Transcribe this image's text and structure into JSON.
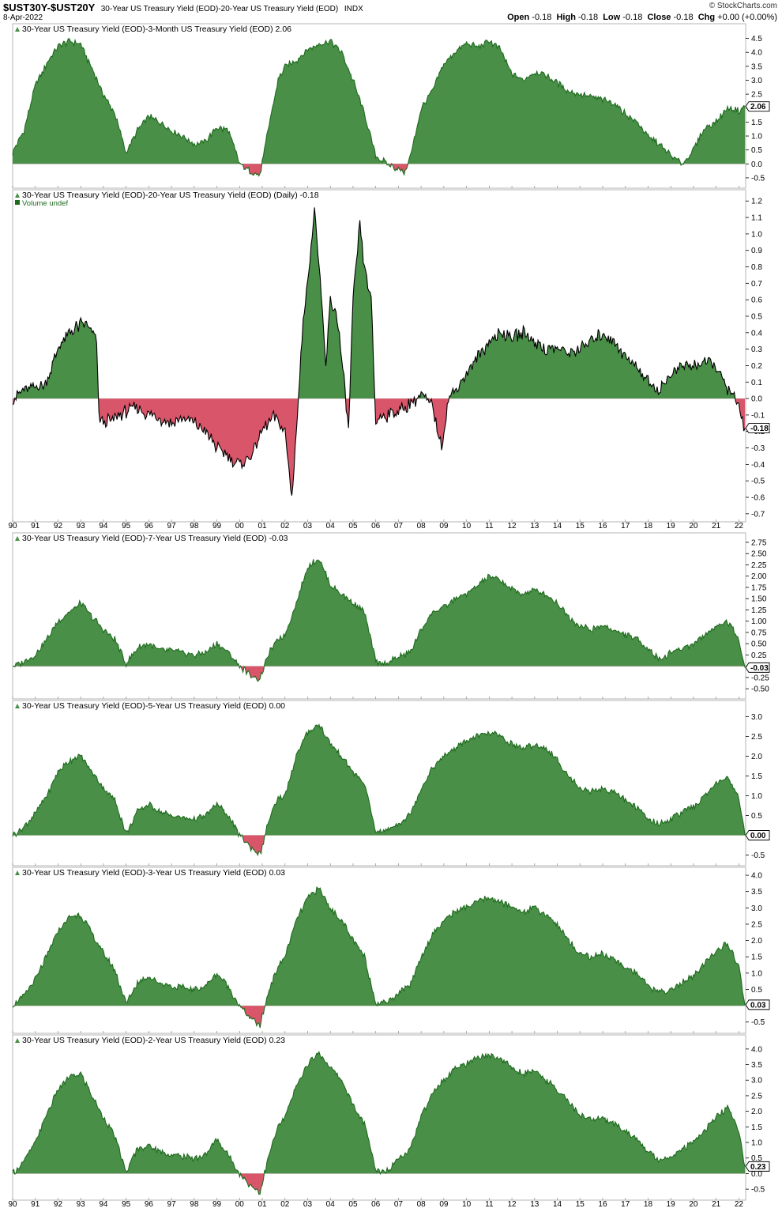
{
  "header": {
    "symbol": "$UST30Y-$UST20Y",
    "description": "30-Year US Treasury Yield (EOD)-20-Year US Treasury Yield (EOD)",
    "exchange": "INDX",
    "date": "8-Apr-2022",
    "brand": "© StockCharts.com",
    "open_label": "Open",
    "open": "-0.18",
    "high_label": "High",
    "high": "-0.18",
    "low_label": "Low",
    "low": "-0.18",
    "close_label": "Close",
    "close": "-0.18",
    "chg_label": "Chg",
    "chg": "+0.00 (+0.00%)"
  },
  "colors": {
    "positive": "#4a8f48",
    "negative": "#d9556a",
    "line_green": "#1e6b1e",
    "line_black": "#000000"
  },
  "year_labels": [
    "90",
    "91",
    "92",
    "93",
    "94",
    "95",
    "96",
    "97",
    "98",
    "99",
    "00",
    "01",
    "02",
    "03",
    "04",
    "05",
    "06",
    "07",
    "08",
    "09",
    "10",
    "11",
    "12",
    "13",
    "14",
    "15",
    "16",
    "17",
    "18",
    "19",
    "20",
    "21",
    "22"
  ],
  "chart_data": [
    {
      "type": "area",
      "title": "30-Year US Treasury Yield (EOD)-3-Month US Treasury Yield (EOD) 2.06",
      "last_label": "2.06",
      "yticks": [
        "-0.5",
        "0.0",
        "0.5",
        "1.0",
        "1.5",
        "2.0",
        "2.5",
        "3.0",
        "3.5",
        "4.0",
        "4.5"
      ],
      "ylim": [
        -0.7,
        4.8
      ],
      "x": [
        1990,
        1990.5,
        1991,
        1991.5,
        1992,
        1992.5,
        1993,
        1993.5,
        1994,
        1994.5,
        1995,
        1995.5,
        1996,
        1996.5,
        1997,
        1997.5,
        1998,
        1998.5,
        1999,
        1999.5,
        2000,
        2000.5,
        2000.9,
        2001.3,
        2001.7,
        2002,
        2002.5,
        2003,
        2003.5,
        2004,
        2004.5,
        2005,
        2005.5,
        2006,
        2006.5,
        2007,
        2007.3,
        2007.6,
        2008,
        2008.5,
        2009,
        2009.5,
        2010,
        2010.5,
        2011,
        2011.5,
        2012,
        2012.5,
        2013,
        2013.5,
        2014,
        2014.5,
        2015,
        2015.5,
        2016,
        2016.5,
        2017,
        2017.5,
        2018,
        2018.5,
        2019,
        2019.5,
        2020,
        2020.5,
        2021,
        2021.5,
        2022,
        2022.27
      ],
      "values": [
        0.4,
        1.2,
        2.8,
        3.6,
        4.2,
        4.4,
        4.3,
        3.4,
        2.5,
        1.8,
        0.4,
        1.2,
        1.7,
        1.5,
        1.2,
        1.0,
        0.7,
        0.8,
        1.3,
        1.2,
        0.0,
        -0.3,
        -0.4,
        1.4,
        3.0,
        3.5,
        3.7,
        4.1,
        4.3,
        4.4,
        4.0,
        3.0,
        1.8,
        0.3,
        0.0,
        -0.2,
        -0.3,
        0.5,
        2.0,
        2.6,
        3.6,
        4.0,
        4.3,
        4.2,
        4.4,
        4.1,
        3.2,
        3.0,
        3.3,
        3.2,
        2.9,
        2.6,
        2.5,
        2.4,
        2.3,
        2.2,
        1.8,
        1.5,
        1.0,
        0.7,
        0.3,
        0.0,
        0.5,
        1.3,
        1.5,
        2.0,
        1.9,
        2.06
      ]
    },
    {
      "type": "area",
      "title": "30-Year US Treasury Yield (EOD)-20-Year US Treasury Yield (EOD) (Daily) -0.18",
      "legend": "Volume undef",
      "last_label": "-0.18",
      "yticks": [
        "-0.7",
        "-0.6",
        "-0.5",
        "-0.4",
        "-0.3",
        "-0.2",
        "-0.1",
        "0.0",
        "0.1",
        "0.2",
        "0.3",
        "0.4",
        "0.5",
        "0.6",
        "0.7",
        "0.8",
        "0.9",
        "1.0",
        "1.1",
        "1.2"
      ],
      "ylim": [
        -0.72,
        1.23
      ],
      "x": [
        1990,
        1990.5,
        1991,
        1991.5,
        1992,
        1992.5,
        1993,
        1993.3,
        1993.7,
        1993.8,
        1994,
        1994.5,
        1995,
        1995.5,
        1996,
        1996.5,
        1997,
        1997.5,
        1998,
        1998.5,
        1999,
        1999.5,
        2000,
        2000.5,
        2001,
        2001.5,
        2002,
        2002.3,
        2002.6,
        2002.8,
        2003,
        2003.3,
        2003.5,
        2003.8,
        2004,
        2004.3,
        2004.6,
        2004.8,
        2005,
        2005.3,
        2005.5,
        2005.8,
        2006,
        2006.1,
        2006.5,
        2007,
        2007.5,
        2008,
        2008.5,
        2008.9,
        2009.2,
        2009.5,
        2010,
        2010.5,
        2011,
        2011.5,
        2012,
        2012.5,
        2013,
        2013.5,
        2014,
        2014.5,
        2015,
        2015.5,
        2016,
        2016.5,
        2017,
        2017.5,
        2018,
        2018.5,
        2019,
        2019.5,
        2020,
        2020.5,
        2021,
        2021.3,
        2021.6,
        2022,
        2022.27
      ],
      "values": [
        0.0,
        0.05,
        0.07,
        0.1,
        0.3,
        0.4,
        0.45,
        0.45,
        0.35,
        -0.1,
        -0.15,
        -0.12,
        -0.08,
        -0.05,
        -0.1,
        -0.12,
        -0.15,
        -0.12,
        -0.15,
        -0.2,
        -0.3,
        -0.35,
        -0.4,
        -0.35,
        -0.2,
        -0.1,
        -0.2,
        -0.6,
        0.0,
        0.5,
        0.7,
        1.15,
        0.8,
        0.2,
        0.6,
        0.5,
        0.1,
        -0.2,
        0.6,
        1.05,
        0.8,
        0.6,
        -0.15,
        -0.12,
        -0.1,
        -0.08,
        -0.03,
        0.02,
        -0.05,
        -0.3,
        0.0,
        0.05,
        0.15,
        0.25,
        0.35,
        0.4,
        0.38,
        0.4,
        0.35,
        0.3,
        0.3,
        0.28,
        0.3,
        0.35,
        0.4,
        0.35,
        0.25,
        0.2,
        0.1,
        0.05,
        0.15,
        0.2,
        0.2,
        0.22,
        0.2,
        0.1,
        0.05,
        -0.05,
        -0.18
      ]
    },
    {
      "type": "area",
      "title": "30-Year US Treasury Yield (EOD)-7-Year US Treasury Yield (EOD) -0.03",
      "last_label": "-0.03",
      "yticks": [
        "-0.50",
        "-0.25",
        "0.00",
        "0.25",
        "0.50",
        "0.75",
        "1.00",
        "1.25",
        "1.50",
        "1.75",
        "2.00",
        "2.25",
        "2.50",
        "2.75"
      ],
      "ylim": [
        -0.62,
        2.82
      ],
      "x": [
        1990,
        1990.5,
        1991,
        1991.5,
        1992,
        1992.5,
        1993,
        1993.5,
        1994,
        1994.5,
        1995,
        1995.5,
        1996,
        1996.5,
        1997,
        1997.5,
        1998,
        1998.5,
        1999,
        1999.5,
        2000,
        2000.5,
        2000.9,
        2001.3,
        2001.7,
        2002,
        2002.5,
        2003,
        2003.5,
        2004,
        2004.5,
        2005,
        2005.5,
        2006,
        2006.3,
        2006.6,
        2007,
        2007.5,
        2008,
        2008.5,
        2009,
        2009.5,
        2010,
        2010.5,
        2011,
        2011.5,
        2012,
        2012.5,
        2013,
        2013.5,
        2014,
        2014.5,
        2015,
        2015.5,
        2016,
        2016.5,
        2017,
        2017.5,
        2018,
        2018.5,
        2019,
        2019.5,
        2020,
        2020.5,
        2021,
        2021.5,
        2022,
        2022.27
      ],
      "values": [
        0.0,
        0.1,
        0.25,
        0.6,
        1.0,
        1.2,
        1.4,
        1.1,
        0.8,
        0.6,
        0.05,
        0.4,
        0.5,
        0.35,
        0.35,
        0.3,
        0.25,
        0.3,
        0.5,
        0.3,
        0.0,
        -0.2,
        -0.3,
        0.3,
        0.6,
        0.7,
        1.4,
        2.2,
        2.4,
        1.8,
        1.6,
        1.4,
        1.2,
        0.1,
        0.05,
        0.1,
        0.2,
        0.3,
        0.8,
        1.2,
        1.3,
        1.5,
        1.6,
        1.8,
        2.0,
        1.9,
        1.7,
        1.6,
        1.7,
        1.6,
        1.4,
        1.1,
        0.9,
        0.8,
        0.9,
        0.8,
        0.7,
        0.6,
        0.4,
        0.15,
        0.3,
        0.4,
        0.5,
        0.7,
        0.9,
        1.0,
        0.6,
        -0.03
      ]
    },
    {
      "type": "area",
      "title": "30-Year US Treasury Yield (EOD)-5-Year US Treasury Yield (EOD) 0.00",
      "last_label": "0.00",
      "yticks": [
        "-0.5",
        "0.0",
        "0.5",
        "1.0",
        "1.5",
        "2.0",
        "2.5",
        "3.0"
      ],
      "ylim": [
        -0.65,
        3.25
      ],
      "x": [
        1990,
        1990.5,
        1991,
        1991.5,
        1992,
        1992.5,
        1993,
        1993.5,
        1994,
        1994.5,
        1995,
        1995.5,
        1996,
        1996.5,
        1997,
        1997.5,
        1998,
        1998.5,
        1999,
        1999.5,
        2000,
        2000.5,
        2000.9,
        2001.3,
        2001.7,
        2002,
        2002.5,
        2003,
        2003.5,
        2004,
        2004.5,
        2005,
        2005.5,
        2006,
        2006.3,
        2006.6,
        2007,
        2007.5,
        2008,
        2008.5,
        2009,
        2009.5,
        2010,
        2010.5,
        2011,
        2011.5,
        2012,
        2012.5,
        2013,
        2013.5,
        2014,
        2014.5,
        2015,
        2015.5,
        2016,
        2016.5,
        2017,
        2017.5,
        2018,
        2018.5,
        2019,
        2019.5,
        2020,
        2020.5,
        2021,
        2021.5,
        2022,
        2022.27
      ],
      "values": [
        0.0,
        0.2,
        0.55,
        1.0,
        1.6,
        1.9,
        2.0,
        1.6,
        1.2,
        0.9,
        0.05,
        0.6,
        0.8,
        0.6,
        0.5,
        0.45,
        0.4,
        0.5,
        0.8,
        0.5,
        0.0,
        -0.3,
        -0.5,
        0.4,
        0.9,
        1.0,
        2.0,
        2.6,
        2.8,
        2.3,
        2.0,
        1.6,
        1.3,
        0.1,
        0.1,
        0.15,
        0.3,
        0.5,
        1.2,
        1.7,
        2.0,
        2.2,
        2.4,
        2.5,
        2.6,
        2.5,
        2.3,
        2.2,
        2.3,
        2.2,
        1.9,
        1.5,
        1.2,
        1.1,
        1.2,
        1.1,
        0.9,
        0.7,
        0.4,
        0.3,
        0.4,
        0.6,
        0.7,
        1.0,
        1.3,
        1.5,
        0.9,
        0.0
      ]
    },
    {
      "type": "area",
      "title": "30-Year US Treasury Yield (EOD)-3-Year US Treasury Yield (EOD) 0.03",
      "last_label": "0.03",
      "yticks": [
        "-0.5",
        "0.0",
        "0.5",
        "1.0",
        "1.5",
        "2.0",
        "2.5",
        "3.0",
        "3.5",
        "4.0"
      ],
      "ylim": [
        -0.7,
        4.05
      ],
      "x": [
        1990,
        1990.5,
        1991,
        1991.5,
        1992,
        1992.5,
        1993,
        1993.5,
        1994,
        1994.5,
        1995,
        1995.5,
        1996,
        1996.5,
        1997,
        1997.5,
        1998,
        1998.5,
        1999,
        1999.5,
        2000,
        2000.5,
        2000.9,
        2001.3,
        2001.7,
        2002,
        2002.5,
        2003,
        2003.5,
        2004,
        2004.5,
        2005,
        2005.5,
        2006,
        2006.3,
        2006.6,
        2007,
        2007.5,
        2008,
        2008.5,
        2009,
        2009.5,
        2010,
        2010.5,
        2011,
        2011.5,
        2012,
        2012.5,
        2013,
        2013.5,
        2014,
        2014.5,
        2015,
        2015.5,
        2016,
        2016.5,
        2017,
        2017.5,
        2018,
        2018.5,
        2019,
        2019.5,
        2020,
        2020.5,
        2021,
        2021.5,
        2022,
        2022.27
      ],
      "values": [
        0.0,
        0.3,
        0.8,
        1.5,
        2.3,
        2.7,
        2.8,
        2.2,
        1.6,
        1.1,
        0.05,
        0.7,
        0.9,
        0.7,
        0.6,
        0.55,
        0.5,
        0.6,
        1.0,
        0.6,
        0.0,
        -0.4,
        -0.6,
        0.5,
        1.2,
        1.5,
        2.6,
        3.3,
        3.6,
        3.0,
        2.6,
        2.0,
        1.5,
        0.1,
        0.1,
        0.15,
        0.4,
        0.6,
        1.5,
        2.2,
        2.6,
        2.9,
        3.0,
        3.2,
        3.3,
        3.2,
        3.0,
        2.9,
        3.0,
        2.8,
        2.5,
        2.0,
        1.6,
        1.5,
        1.6,
        1.4,
        1.2,
        1.0,
        0.6,
        0.4,
        0.5,
        0.7,
        0.9,
        1.3,
        1.7,
        1.9,
        1.2,
        0.03
      ]
    },
    {
      "type": "area",
      "title": "30-Year US Treasury Yield (EOD)-2-Year US Treasury Yield (EOD) 0.23",
      "last_label": "0.23",
      "yticks": [
        "-0.5",
        "0.0",
        "0.5",
        "1.0",
        "1.5",
        "2.0",
        "2.5",
        "3.0",
        "3.5",
        "4.0"
      ],
      "ylim": [
        -0.7,
        4.25
      ],
      "x": [
        1990,
        1990.5,
        1991,
        1991.5,
        1992,
        1992.5,
        1993,
        1993.5,
        1994,
        1994.5,
        1995,
        1995.5,
        1996,
        1996.5,
        1997,
        1997.5,
        1998,
        1998.5,
        1999,
        1999.5,
        2000,
        2000.5,
        2000.9,
        2001.3,
        2001.7,
        2002,
        2002.5,
        2003,
        2003.5,
        2004,
        2004.5,
        2005,
        2005.5,
        2006,
        2006.3,
        2006.6,
        2007,
        2007.5,
        2008,
        2008.5,
        2009,
        2009.5,
        2010,
        2010.5,
        2011,
        2011.5,
        2012,
        2012.5,
        2013,
        2013.5,
        2014,
        2014.5,
        2015,
        2015.5,
        2016,
        2016.5,
        2017,
        2017.5,
        2018,
        2018.5,
        2019,
        2019.5,
        2020,
        2020.5,
        2021,
        2021.5,
        2022,
        2022.27
      ],
      "values": [
        0.0,
        0.4,
        1.0,
        1.9,
        2.7,
        3.1,
        3.2,
        2.5,
        1.8,
        1.2,
        0.05,
        0.8,
        0.9,
        0.7,
        0.6,
        0.55,
        0.5,
        0.6,
        1.1,
        0.6,
        0.0,
        -0.4,
        -0.6,
        0.6,
        1.5,
        1.8,
        2.8,
        3.5,
        3.9,
        3.4,
        3.0,
        2.2,
        1.6,
        0.1,
        0.1,
        0.15,
        0.5,
        0.8,
        1.8,
        2.6,
        3.0,
        3.4,
        3.5,
        3.7,
        3.8,
        3.7,
        3.4,
        3.2,
        3.3,
        3.0,
        2.7,
        2.3,
        1.9,
        1.7,
        1.8,
        1.6,
        1.4,
        1.1,
        0.7,
        0.45,
        0.55,
        0.8,
        1.0,
        1.4,
        1.8,
        2.1,
        1.4,
        0.23
      ]
    }
  ]
}
